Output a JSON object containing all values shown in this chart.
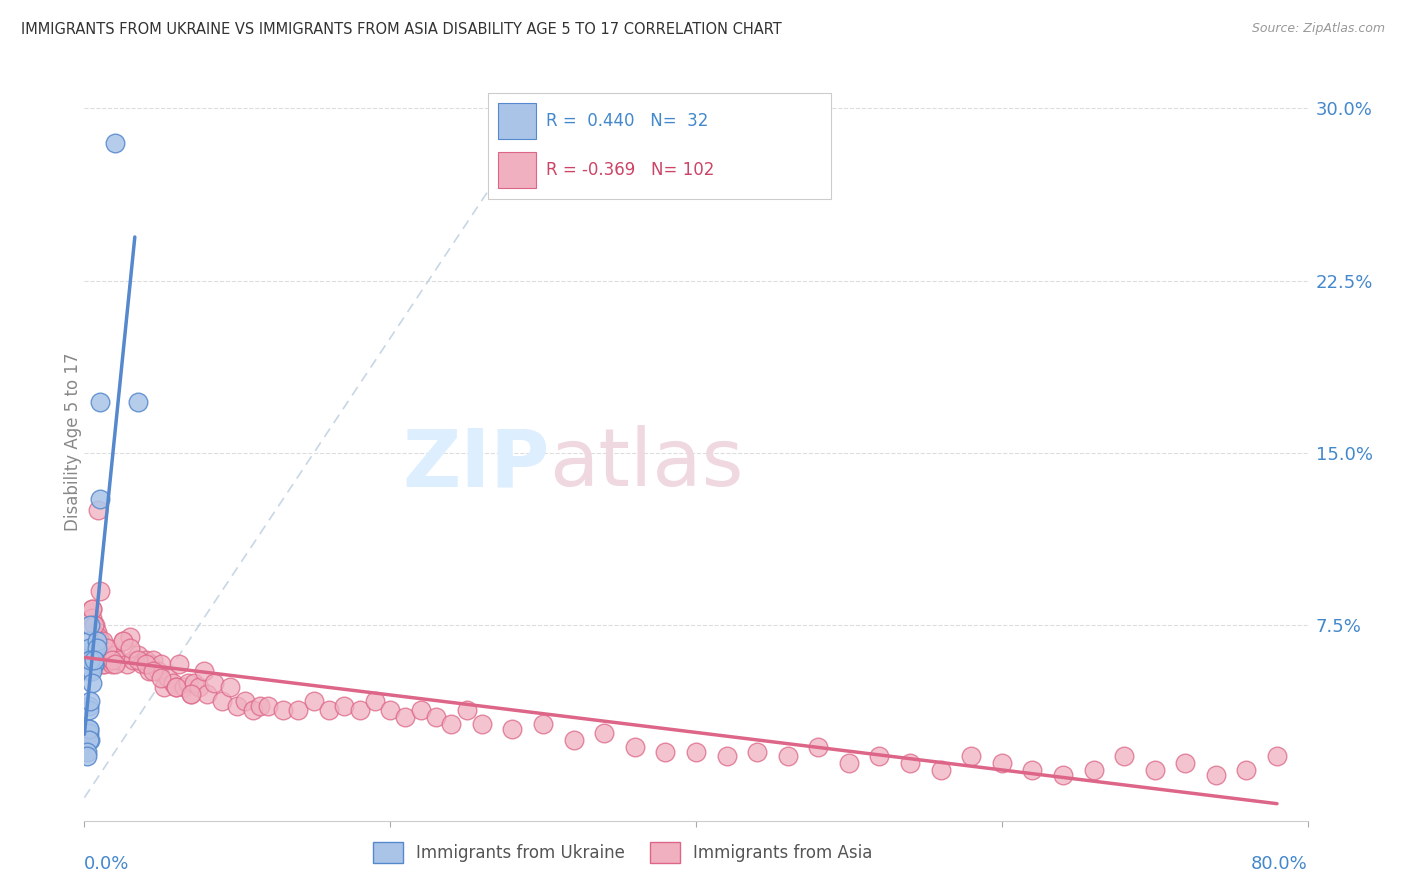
{
  "title": "IMMIGRANTS FROM UKRAINE VS IMMIGRANTS FROM ASIA DISABILITY AGE 5 TO 17 CORRELATION CHART",
  "source": "Source: ZipAtlas.com",
  "ylabel": "Disability Age 5 to 17",
  "ytick_values": [
    0.075,
    0.15,
    0.225,
    0.3
  ],
  "ytick_labels": [
    "7.5%",
    "15.0%",
    "22.5%",
    "30.0%"
  ],
  "xlim": [
    0.0,
    0.8
  ],
  "ylim": [
    -0.01,
    0.32
  ],
  "ukraine_color": "#5588cc",
  "ukraine_color_fill": "#aac4e8",
  "asia_color": "#dd6688",
  "asia_color_fill": "#f0b0c0",
  "R_ukraine": 0.44,
  "N_ukraine": 32,
  "R_asia": -0.369,
  "N_asia": 102,
  "ukraine_scatter_x": [
    0.02,
    0.035,
    0.01,
    0.01,
    0.007,
    0.005,
    0.005,
    0.003,
    0.003,
    0.006,
    0.006,
    0.003,
    0.003,
    0.004,
    0.004,
    0.005,
    0.005,
    0.004,
    0.003,
    0.003,
    0.004,
    0.003,
    0.003,
    0.004,
    0.008,
    0.008,
    0.004,
    0.003,
    0.003,
    0.002,
    0.002,
    0.006
  ],
  "ukraine_scatter_y": [
    0.285,
    0.172,
    0.172,
    0.13,
    0.065,
    0.064,
    0.06,
    0.058,
    0.056,
    0.058,
    0.058,
    0.068,
    0.065,
    0.06,
    0.055,
    0.055,
    0.05,
    0.075,
    0.04,
    0.038,
    0.042,
    0.03,
    0.028,
    0.025,
    0.068,
    0.065,
    0.06,
    0.03,
    0.025,
    0.02,
    0.018,
    0.06
  ],
  "asia_scatter_x": [
    0.005,
    0.005,
    0.007,
    0.008,
    0.009,
    0.01,
    0.01,
    0.012,
    0.012,
    0.013,
    0.015,
    0.016,
    0.018,
    0.02,
    0.022,
    0.025,
    0.028,
    0.03,
    0.032,
    0.035,
    0.038,
    0.04,
    0.042,
    0.043,
    0.045,
    0.048,
    0.05,
    0.052,
    0.055,
    0.058,
    0.06,
    0.062,
    0.065,
    0.068,
    0.07,
    0.072,
    0.075,
    0.078,
    0.08,
    0.085,
    0.09,
    0.095,
    0.1,
    0.105,
    0.11,
    0.115,
    0.12,
    0.13,
    0.14,
    0.15,
    0.16,
    0.17,
    0.18,
    0.19,
    0.2,
    0.21,
    0.22,
    0.23,
    0.24,
    0.25,
    0.26,
    0.28,
    0.3,
    0.32,
    0.34,
    0.36,
    0.38,
    0.4,
    0.42,
    0.44,
    0.46,
    0.48,
    0.5,
    0.52,
    0.54,
    0.56,
    0.58,
    0.6,
    0.62,
    0.64,
    0.66,
    0.68,
    0.7,
    0.72,
    0.74,
    0.76,
    0.78,
    0.005,
    0.006,
    0.007,
    0.008,
    0.009,
    0.01,
    0.012,
    0.015,
    0.018,
    0.02,
    0.025,
    0.03,
    0.035,
    0.04,
    0.045,
    0.05,
    0.06,
    0.07
  ],
  "asia_scatter_y": [
    0.082,
    0.078,
    0.075,
    0.072,
    0.07,
    0.068,
    0.065,
    0.06,
    0.058,
    0.058,
    0.065,
    0.06,
    0.058,
    0.062,
    0.06,
    0.068,
    0.058,
    0.07,
    0.06,
    0.062,
    0.058,
    0.06,
    0.055,
    0.058,
    0.06,
    0.055,
    0.058,
    0.048,
    0.052,
    0.05,
    0.048,
    0.058,
    0.048,
    0.05,
    0.045,
    0.05,
    0.048,
    0.055,
    0.045,
    0.05,
    0.042,
    0.048,
    0.04,
    0.042,
    0.038,
    0.04,
    0.04,
    0.038,
    0.038,
    0.042,
    0.038,
    0.04,
    0.038,
    0.042,
    0.038,
    0.035,
    0.038,
    0.035,
    0.032,
    0.038,
    0.032,
    0.03,
    0.032,
    0.025,
    0.028,
    0.022,
    0.02,
    0.02,
    0.018,
    0.02,
    0.018,
    0.022,
    0.015,
    0.018,
    0.015,
    0.012,
    0.018,
    0.015,
    0.012,
    0.01,
    0.012,
    0.018,
    0.012,
    0.015,
    0.01,
    0.012,
    0.018,
    0.082,
    0.075,
    0.065,
    0.06,
    0.125,
    0.09,
    0.068,
    0.065,
    0.06,
    0.058,
    0.068,
    0.065,
    0.06,
    0.058,
    0.055,
    0.052,
    0.048,
    0.045
  ],
  "grid_color": "#dddddd",
  "legend_text_color_ukraine": "#4488cc",
  "legend_text_color_asia": "#cc4466"
}
